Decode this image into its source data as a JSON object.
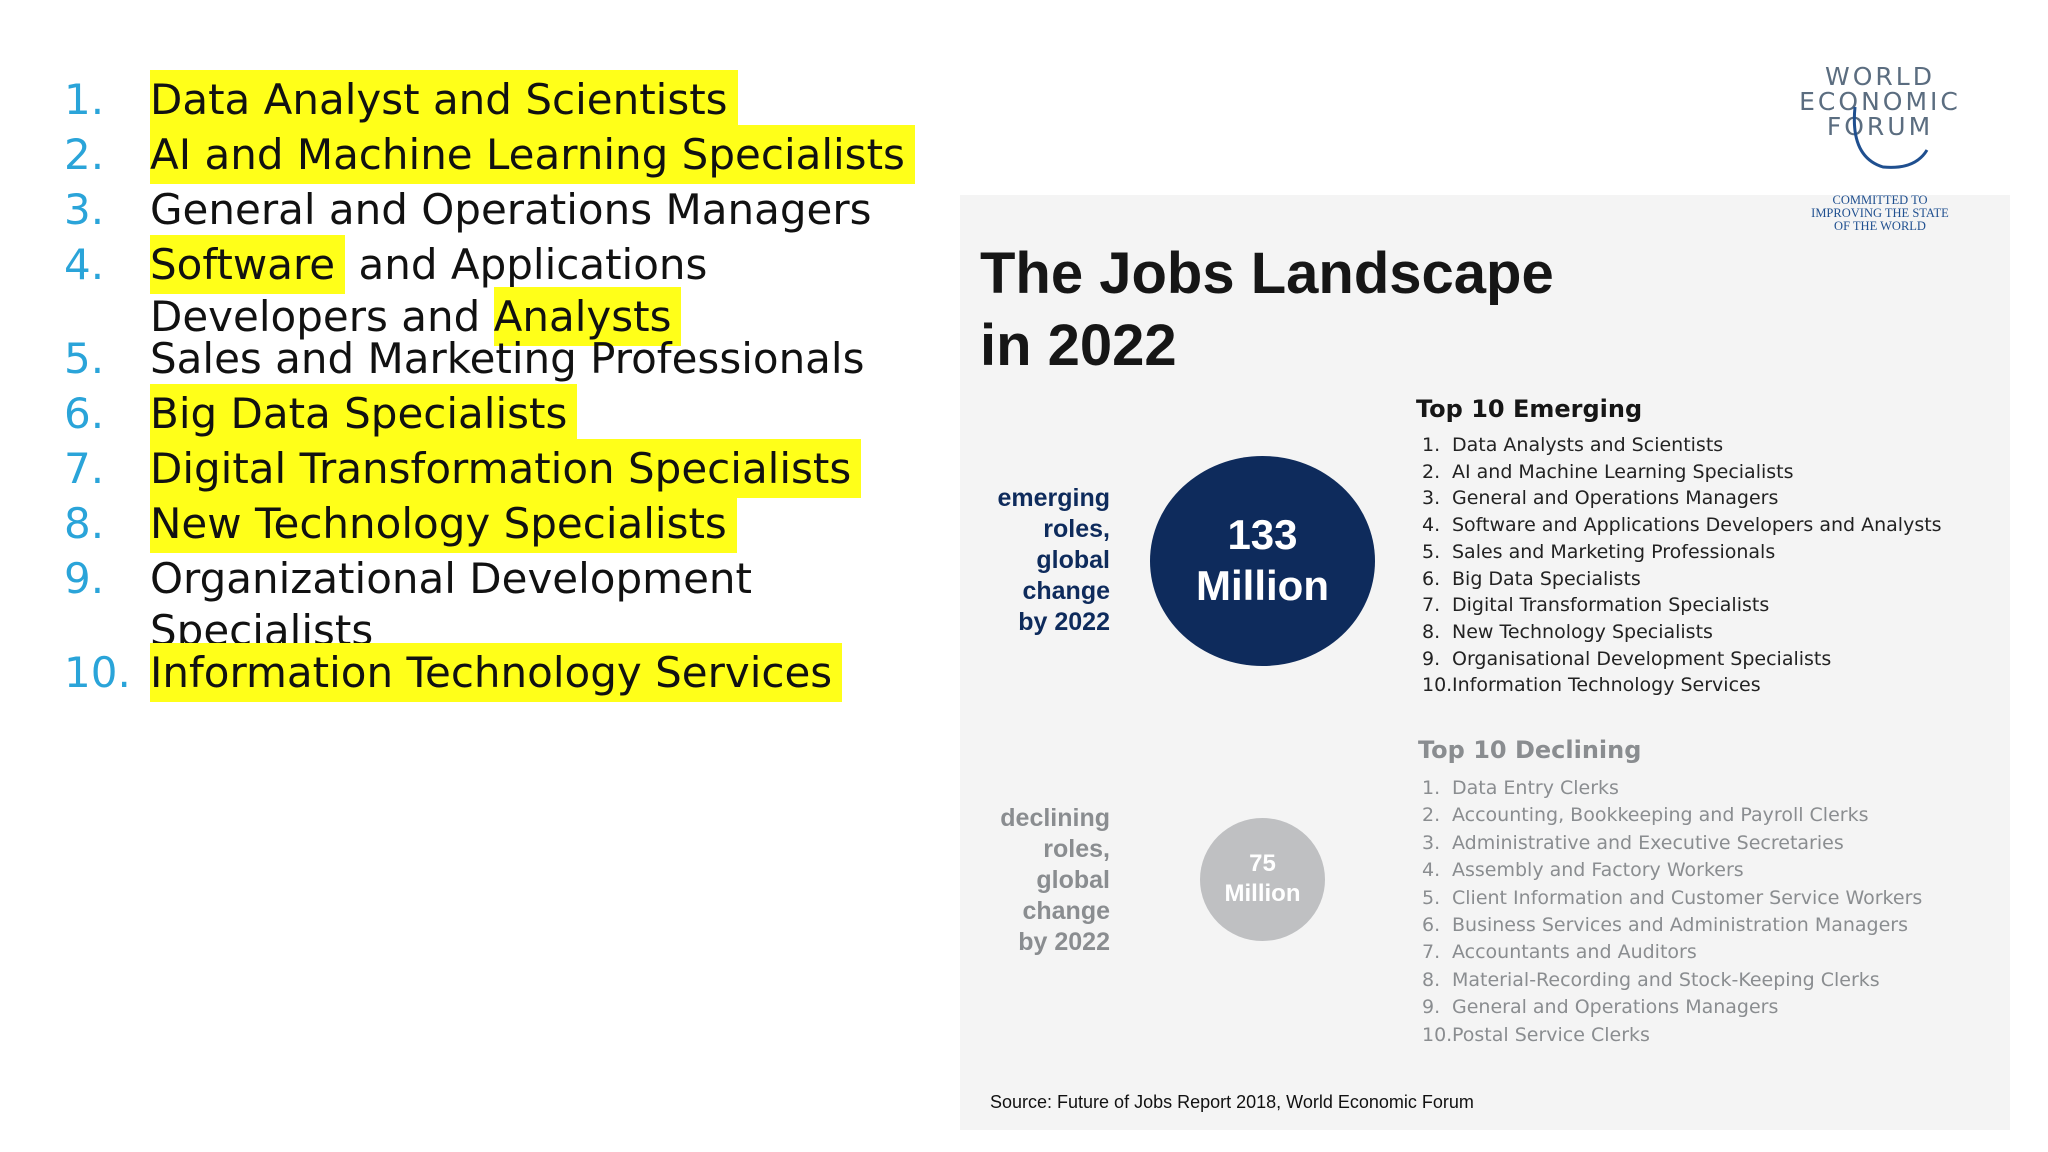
{
  "left_list": [
    {
      "num": "1.",
      "parts": [
        {
          "t": "Data Analyst and Scientists",
          "hl": true
        }
      ]
    },
    {
      "num": "2.",
      "parts": [
        {
          "t": "AI and Machine Learning Specialists",
          "hl": true
        }
      ]
    },
    {
      "num": "3.",
      "parts": [
        {
          "t": "General and Operations Managers",
          "hl": false
        }
      ]
    },
    {
      "num": "4.",
      "parts": [
        {
          "t": "Software",
          "hl": true
        },
        {
          "t": " and Applications\nDevelopers and ",
          "hl": false
        },
        {
          "t": "Analysts",
          "hl": true
        }
      ]
    },
    {
      "num": "5.",
      "parts": [
        {
          "t": "Sales and Marketing Professionals",
          "hl": false
        }
      ]
    },
    {
      "num": "6.",
      "parts": [
        {
          "t": "Big Data Specialists",
          "hl": true
        }
      ]
    },
    {
      "num": "7.",
      "parts": [
        {
          "t": "Digital Transformation Specialists",
          "hl": true
        }
      ]
    },
    {
      "num": "8.",
      "parts": [
        {
          "t": "New Technology Specialists",
          "hl": true
        }
      ]
    },
    {
      "num": "9.",
      "parts": [
        {
          "t": "Organizational Development\nSpecialists",
          "hl": false
        }
      ]
    },
    {
      "num": "10.",
      "parts": [
        {
          "t": "Information Technology Services",
          "hl": true
        }
      ]
    }
  ],
  "logo": {
    "line1": "WORLD",
    "line2": "ECONOMIC",
    "line3": "FORUM",
    "tagline": [
      "COMMITTED TO",
      "IMPROVING THE STATE",
      "OF THE WORLD"
    ]
  },
  "infographic": {
    "title_line1": "The Jobs Landscape",
    "title_line2": "in 2022",
    "emerging_caption": [
      "emerging",
      "roles,",
      "global",
      "change",
      "by 2022"
    ],
    "emerging_value_line1": "133",
    "emerging_value_line2": "Million",
    "declining_caption": [
      "declining",
      "roles,",
      "global",
      "change",
      "by 2022"
    ],
    "declining_value_line1": "75",
    "declining_value_line2": "Million",
    "emerging_title": "Top 10 Emerging",
    "emerging_items": [
      "Data Analysts and Scientists",
      "AI and Machine Learning Specialists",
      "General and Operations Managers",
      "Software and Applications Developers and Analysts",
      "Sales and Marketing Professionals",
      "Big Data Specialists",
      "Digital Transformation Specialists",
      "New Technology Specialists",
      "Organisational Development Specialists",
      "Information Technology Services"
    ],
    "declining_title": "Top 10 Declining",
    "declining_items": [
      "Data Entry Clerks",
      "Accounting,  Bookkeeping and Payroll Clerks",
      "Administrative and Executive Secretaries",
      "Assembly and Factory Workers",
      "Client Information and Customer Service Workers",
      "Business Services and Administration Managers",
      "Accountants and Auditors",
      "Material-Recording and Stock-Keeping Clerks",
      "General and Operations Managers",
      "Postal Service Clerks"
    ],
    "source": "Source: Future of Jobs Report 2018, World Economic Forum"
  },
  "colors": {
    "number_blue": "#2aa4d9",
    "highlight": "#ffff19",
    "navy": "#0e2b5c",
    "grey_text": "#8a8d90",
    "grey_circle": "#bfc0c2"
  }
}
